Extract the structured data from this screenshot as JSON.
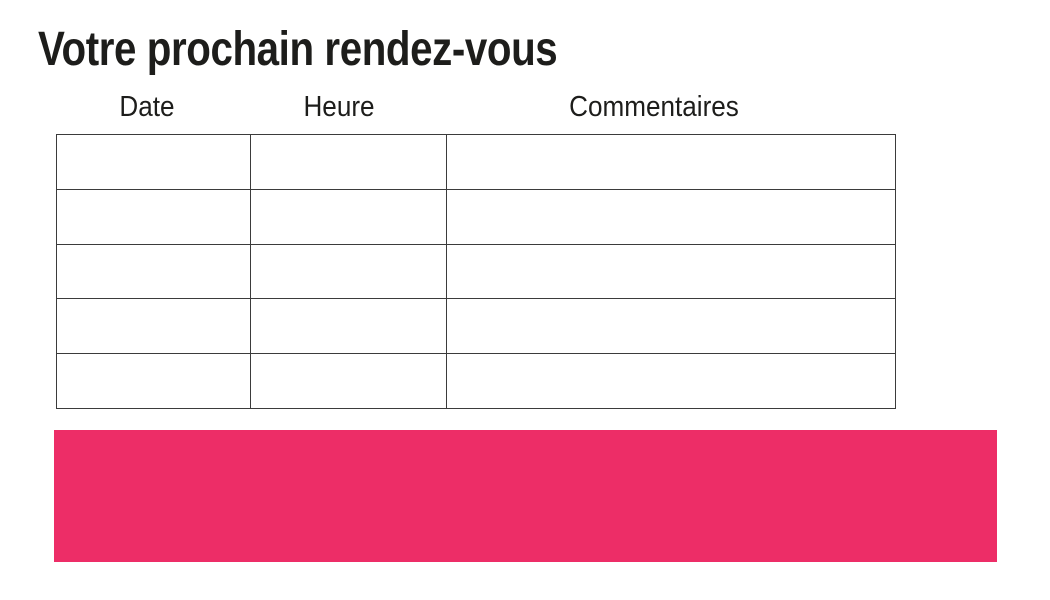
{
  "page": {
    "title": "Votre prochain rendez-vous"
  },
  "table": {
    "columns": [
      {
        "label": "Date"
      },
      {
        "label": "Heure"
      },
      {
        "label": "Commentaires"
      }
    ],
    "rows": [
      [
        "",
        "",
        ""
      ],
      [
        "",
        "",
        ""
      ],
      [
        "",
        "",
        ""
      ],
      [
        "",
        "",
        ""
      ],
      [
        "",
        "",
        ""
      ]
    ]
  },
  "colors": {
    "accent_pink": "#ED2D67",
    "table_border": "#3b3b3b",
    "text": "#1d1d1b"
  }
}
